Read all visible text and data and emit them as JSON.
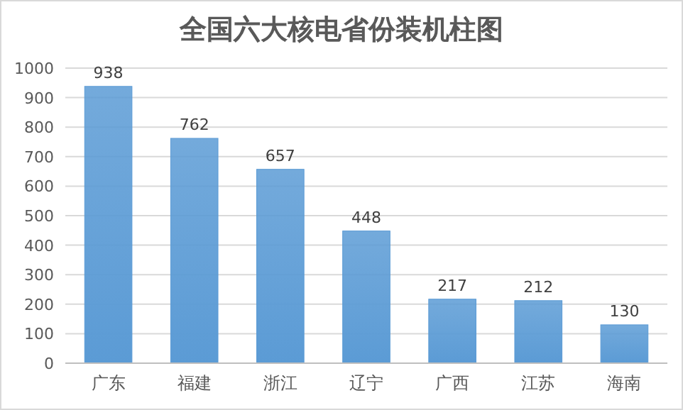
{
  "chart_data": {
    "type": "bar",
    "title": "全国六大核电省份装机柱图",
    "categories": [
      "广东",
      "福建",
      "浙江",
      "辽宁",
      "广西",
      "江苏",
      "海南"
    ],
    "values": [
      938,
      762,
      657,
      448,
      217,
      212,
      130
    ],
    "color": "#5b9bd5",
    "ylim": [
      0,
      1000
    ],
    "yticks": [
      0,
      100,
      200,
      300,
      400,
      500,
      600,
      700,
      800,
      900,
      1000
    ],
    "grid": "y",
    "data_labels": true
  }
}
